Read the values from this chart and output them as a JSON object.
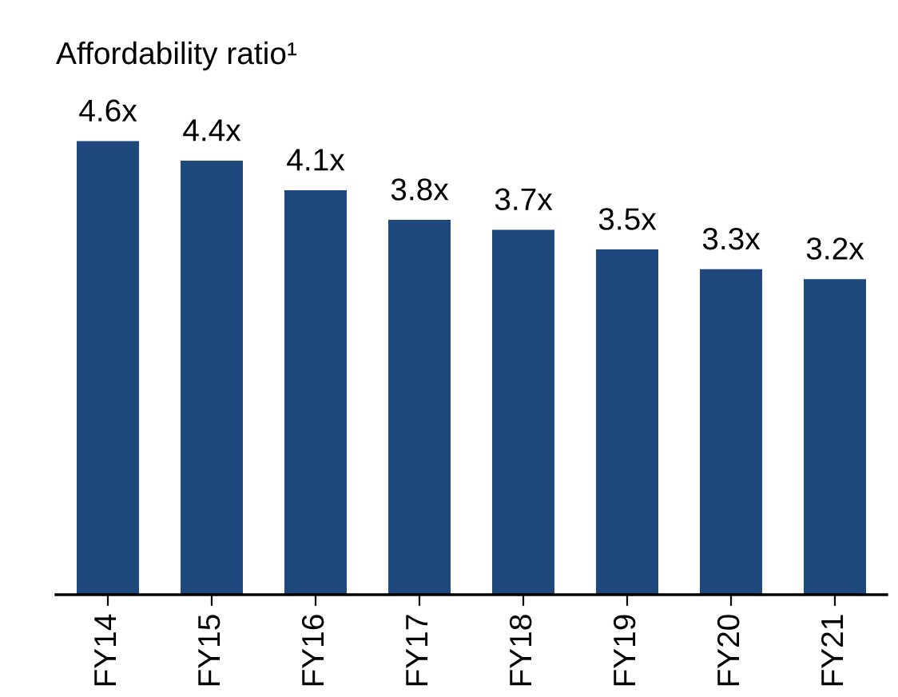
{
  "chart_data": {
    "type": "bar",
    "title": "Affordability ratio¹",
    "categories": [
      "FY14",
      "FY15",
      "FY16",
      "FY17",
      "FY18",
      "FY19",
      "FY20",
      "FY21"
    ],
    "values": [
      4.6,
      4.4,
      4.1,
      3.8,
      3.7,
      3.5,
      3.3,
      3.2
    ],
    "value_labels": [
      "4.6x",
      "4.4x",
      "4.1x",
      "3.8x",
      "3.7x",
      "3.5x",
      "3.3x",
      "3.2x"
    ],
    "color": "#1f497d",
    "tick_labels": "x",
    "grid": false,
    "legend": false
  }
}
